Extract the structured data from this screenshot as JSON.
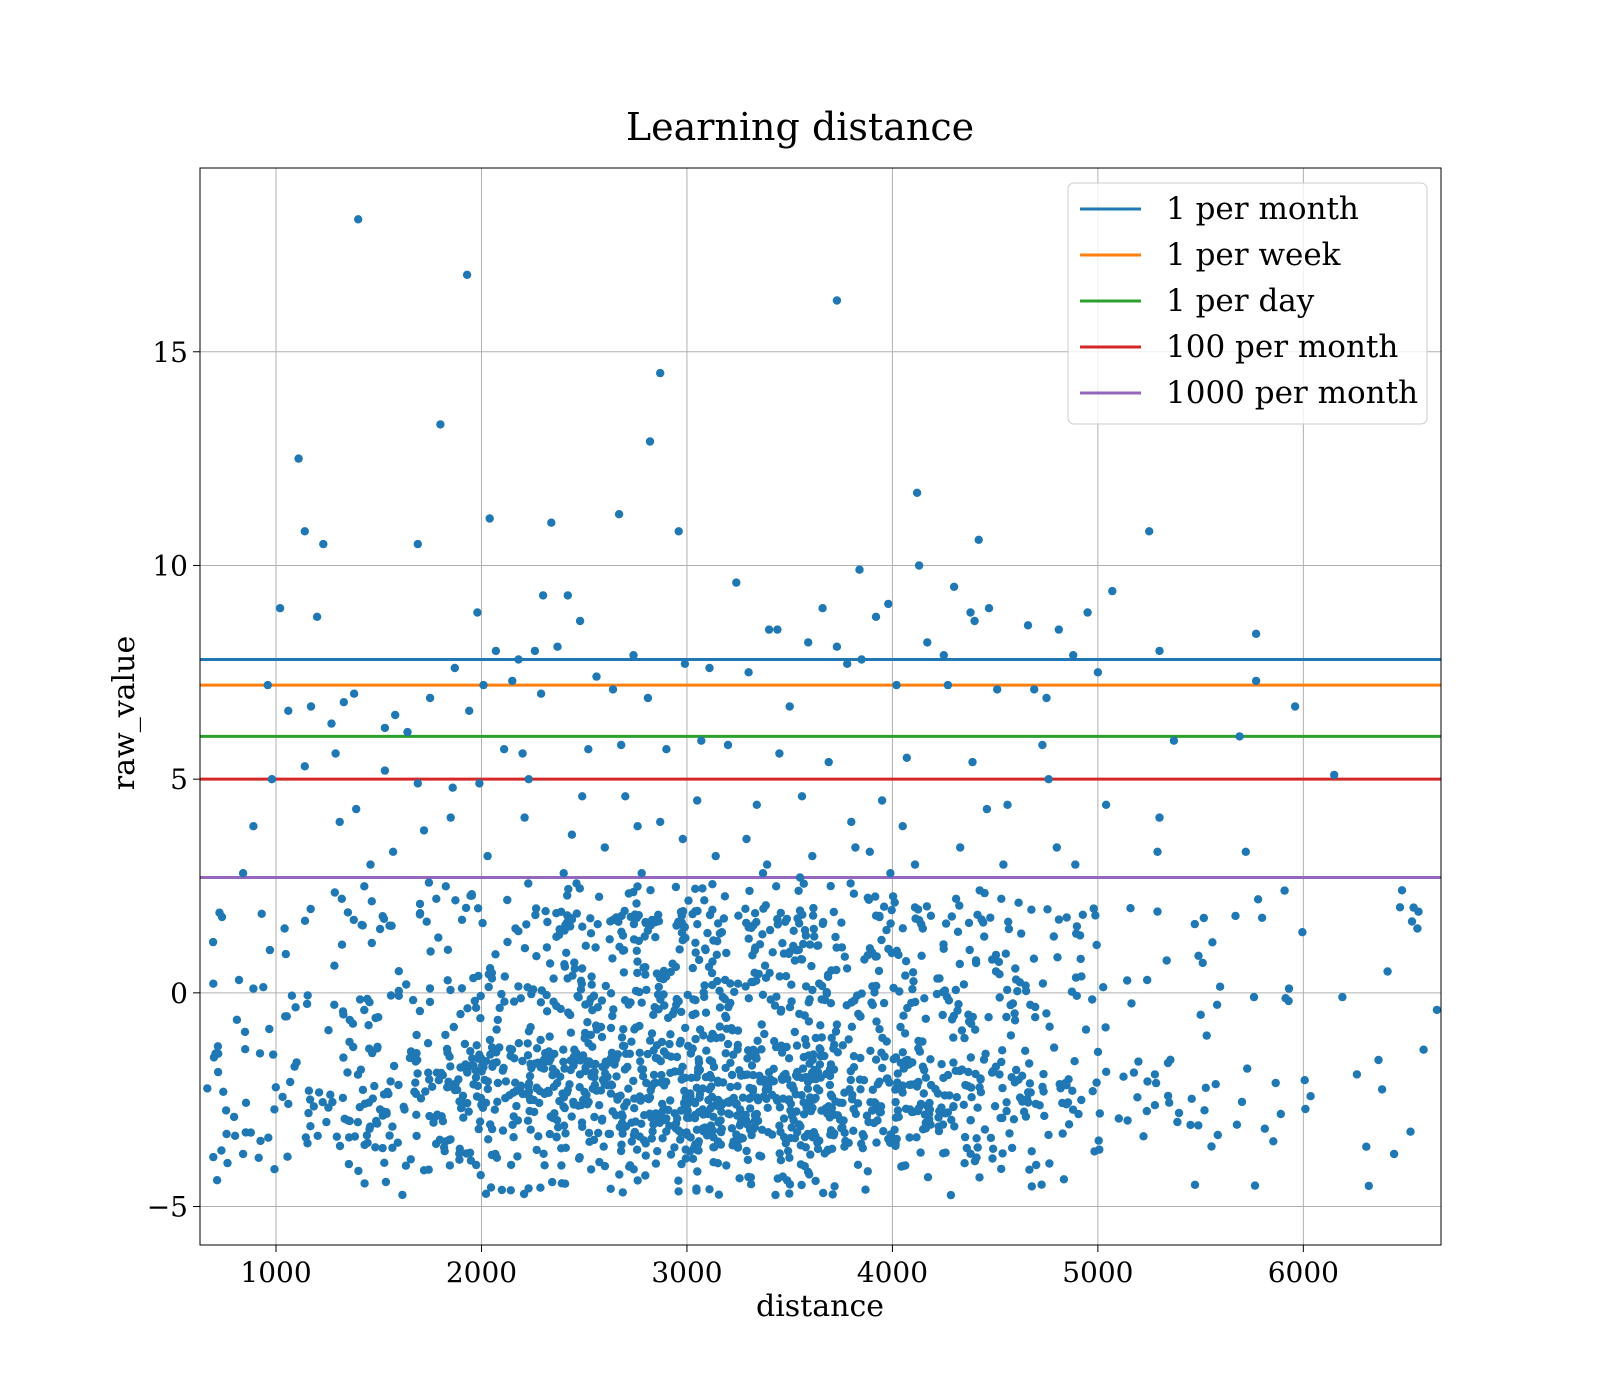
{
  "chart_data": {
    "type": "scatter",
    "title": "Learning distance",
    "xlabel": "distance",
    "ylabel": "raw_value",
    "xlim": [
      630,
      6670
    ],
    "ylim": [
      -5.9,
      19.3
    ],
    "xticks": [
      1000,
      2000,
      3000,
      4000,
      5000,
      6000
    ],
    "yticks": [
      -5,
      0,
      5,
      10,
      15
    ],
    "ytick_labels": [
      "−5",
      "0",
      "5",
      "10",
      "15"
    ],
    "grid": true,
    "legend_position": "top-right",
    "point_color": "#1f77b4",
    "point_count_estimate": 2000,
    "reference_lines": [
      {
        "name": "1 per month",
        "y": 7.8,
        "color": "#1f77b4"
      },
      {
        "name": "1 per week",
        "y": 7.2,
        "color": "#ff7f0e"
      },
      {
        "name": "1 per day",
        "y": 6.0,
        "color": "#2ca02c"
      },
      {
        "name": "100 per month",
        "y": 5.0,
        "color": "#d62728"
      },
      {
        "name": "1000 per month",
        "y": 2.7,
        "color": "#9467bd"
      }
    ],
    "points": [
      [
        1400,
        18.1
      ],
      [
        1930,
        16.8
      ],
      [
        3730,
        16.2
      ],
      [
        2870,
        14.5
      ],
      [
        1800,
        13.3
      ],
      [
        2820,
        12.9
      ],
      [
        1110,
        12.5
      ],
      [
        4120,
        11.7
      ],
      [
        2670,
        11.2
      ],
      [
        2040,
        11.1
      ],
      [
        2340,
        11.0
      ],
      [
        1140,
        10.8
      ],
      [
        2960,
        10.8
      ],
      [
        5250,
        10.8
      ],
      [
        4420,
        10.6
      ],
      [
        1230,
        10.5
      ],
      [
        1690,
        10.5
      ],
      [
        4130,
        10.0
      ],
      [
        3840,
        9.9
      ],
      [
        3240,
        9.6
      ],
      [
        4300,
        9.5
      ],
      [
        5070,
        9.4
      ],
      [
        2420,
        9.3
      ],
      [
        2300,
        9.3
      ],
      [
        4470,
        9.0
      ],
      [
        1020,
        9.0
      ],
      [
        3980,
        9.1
      ],
      [
        4950,
        8.9
      ],
      [
        3660,
        9.0
      ],
      [
        1980,
        8.9
      ],
      [
        1200,
        8.8
      ],
      [
        4380,
        8.9
      ],
      [
        4400,
        8.7
      ],
      [
        2480,
        8.7
      ],
      [
        4660,
        8.6
      ],
      [
        4810,
        8.5
      ],
      [
        3920,
        8.8
      ],
      [
        3440,
        8.5
      ],
      [
        3400,
        8.5
      ],
      [
        5770,
        8.4
      ],
      [
        4170,
        8.2
      ],
      [
        3590,
        8.2
      ],
      [
        2260,
        8.0
      ],
      [
        3730,
        8.1
      ],
      [
        5300,
        8.0
      ],
      [
        4250,
        7.9
      ],
      [
        4880,
        7.9
      ],
      [
        2180,
        7.8
      ],
      [
        2740,
        7.9
      ],
      [
        2070,
        8.0
      ],
      [
        2370,
        8.1
      ],
      [
        1380,
        7.0
      ],
      [
        1580,
        6.5
      ],
      [
        1750,
        6.9
      ],
      [
        1870,
        7.6
      ],
      [
        2010,
        7.2
      ],
      [
        2150,
        7.3
      ],
      [
        2290,
        7.0
      ],
      [
        2560,
        7.4
      ],
      [
        2640,
        7.1
      ],
      [
        2810,
        6.9
      ],
      [
        2990,
        7.7
      ],
      [
        3110,
        7.6
      ],
      [
        3300,
        7.5
      ],
      [
        3500,
        6.7
      ],
      [
        3780,
        7.7
      ],
      [
        3850,
        7.8
      ],
      [
        4020,
        7.2
      ],
      [
        4270,
        7.2
      ],
      [
        4510,
        7.1
      ],
      [
        4690,
        7.1
      ],
      [
        4750,
        6.9
      ],
      [
        5000,
        7.5
      ],
      [
        5770,
        7.3
      ],
      [
        5960,
        6.7
      ],
      [
        1060,
        6.6
      ],
      [
        1170,
        6.7
      ],
      [
        1270,
        6.3
      ],
      [
        1330,
        6.8
      ],
      [
        1530,
        6.2
      ],
      [
        1640,
        6.1
      ],
      [
        1940,
        6.6
      ],
      [
        2110,
        5.7
      ],
      [
        2200,
        5.6
      ],
      [
        2520,
        5.7
      ],
      [
        2680,
        5.8
      ],
      [
        2900,
        5.7
      ],
      [
        3070,
        5.9
      ],
      [
        3200,
        5.8
      ],
      [
        3450,
        5.6
      ],
      [
        3690,
        5.4
      ],
      [
        4070,
        5.5
      ],
      [
        4390,
        5.4
      ],
      [
        4730,
        5.8
      ],
      [
        5370,
        5.9
      ],
      [
        5690,
        6.0
      ],
      [
        6150,
        5.1
      ],
      [
        960,
        7.2
      ],
      [
        980,
        5.0
      ],
      [
        1140,
        5.3
      ],
      [
        1290,
        5.6
      ],
      [
        1530,
        5.2
      ],
      [
        1690,
        4.9
      ],
      [
        1860,
        4.8
      ],
      [
        1990,
        4.9
      ],
      [
        2230,
        5.0
      ],
      [
        2490,
        4.6
      ],
      [
        2700,
        4.6
      ],
      [
        2870,
        4.0
      ],
      [
        3050,
        4.5
      ],
      [
        3340,
        4.4
      ],
      [
        3560,
        4.6
      ],
      [
        3800,
        4.0
      ],
      [
        3950,
        4.5
      ],
      [
        4050,
        3.9
      ],
      [
        4460,
        4.3
      ],
      [
        4560,
        4.4
      ],
      [
        4760,
        5.0
      ],
      [
        5040,
        4.4
      ],
      [
        5300,
        4.1
      ],
      [
        890,
        3.9
      ],
      [
        1310,
        4.0
      ],
      [
        1390,
        4.3
      ],
      [
        1460,
        3.0
      ],
      [
        1570,
        3.3
      ],
      [
        1720,
        3.8
      ],
      [
        1850,
        4.1
      ],
      [
        2030,
        3.2
      ],
      [
        2210,
        4.1
      ],
      [
        2440,
        3.7
      ],
      [
        2600,
        3.4
      ],
      [
        2760,
        3.9
      ],
      [
        2980,
        3.6
      ],
      [
        3140,
        3.2
      ],
      [
        3290,
        3.6
      ],
      [
        3390,
        3.0
      ],
      [
        3610,
        3.2
      ],
      [
        3820,
        3.4
      ],
      [
        3890,
        3.3
      ],
      [
        4110,
        3.0
      ],
      [
        4330,
        3.4
      ],
      [
        4540,
        3.0
      ],
      [
        4800,
        3.4
      ],
      [
        4890,
        3.0
      ],
      [
        5290,
        3.3
      ],
      [
        5720,
        3.3
      ],
      [
        840,
        2.8
      ],
      [
        1320,
        2.2
      ],
      [
        1780,
        2.2
      ],
      [
        2400,
        2.8
      ],
      [
        2780,
        2.8
      ],
      [
        3370,
        2.8
      ],
      [
        3550,
        2.7
      ],
      [
        3990,
        2.8
      ],
      [
        4110,
        2.0
      ],
      [
        4310,
        2.2
      ],
      [
        4530,
        2.2
      ],
      [
        5290,
        1.9
      ],
      [
        5670,
        1.8
      ],
      [
        6480,
        2.4
      ],
      [
        970,
        1.0
      ],
      [
        820,
        0.3
      ],
      [
        890,
        0.1
      ],
      [
        5510,
        0.7
      ],
      [
        6410,
        0.5
      ],
      [
        5930,
        0.1
      ],
      [
        6190,
        -0.1
      ],
      [
        6650,
        -0.4
      ],
      [
        5760,
        -0.1
      ],
      [
        5240,
        0.3
      ]
    ]
  }
}
